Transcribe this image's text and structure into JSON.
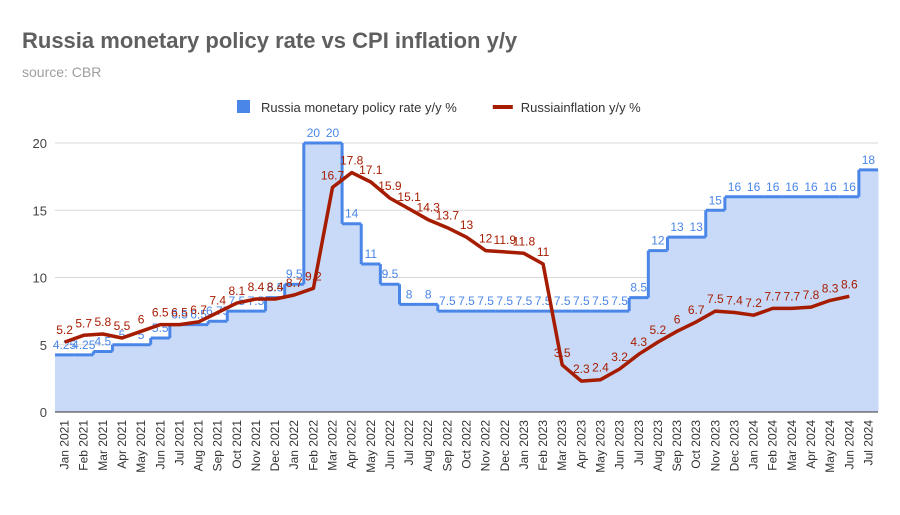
{
  "chart_data": {
    "type": "step-area-line",
    "title": "Russia monetary policy rate vs CPI inflation y/y",
    "subtitle": "source: CBR",
    "categories": [
      "Jan 2021",
      "Feb 2021",
      "Mar 2021",
      "Apr 2021",
      "May 2021",
      "Jun 2021",
      "Jul 2021",
      "Aug 2021",
      "Sep 2021",
      "Oct 2021",
      "Nov 2021",
      "Dec 2021",
      "Jan 2022",
      "Feb 2022",
      "Mar 2022",
      "Apr 2022",
      "May 2022",
      "Jun 2022",
      "Jul 2022",
      "Aug 2022",
      "Sep 2022",
      "Oct 2022",
      "Nov 2022",
      "Dec 2022",
      "Jan 2023",
      "Feb 2023",
      "Mar 2023",
      "Apr 2023",
      "May 2023",
      "Jun 2023",
      "Jul 2023",
      "Aug 2023",
      "Sep 2023",
      "Oct 2023",
      "Nov 2023",
      "Dec 2023",
      "Jan 2024",
      "Feb 2024",
      "Mar 2024",
      "Apr 2024",
      "May 2024",
      "Jun 2024",
      "Jul 2024"
    ],
    "series": [
      {
        "name": "Russia monetary policy rate y/y %",
        "color": "#4a86e8",
        "fill": "#c9daf8",
        "kind": "step-area",
        "values": [
          4.25,
          4.25,
          4.5,
          5,
          5,
          5.5,
          6.5,
          6.5,
          6.75,
          7.5,
          7.5,
          8.5,
          9.5,
          20,
          20,
          14,
          11,
          9.5,
          8,
          8,
          7.5,
          7.5,
          7.5,
          7.5,
          7.5,
          7.5,
          7.5,
          7.5,
          7.5,
          7.5,
          8.5,
          12,
          13,
          13,
          15,
          16,
          16,
          16,
          16,
          16,
          16,
          16,
          18
        ]
      },
      {
        "name": "Russiainflation y/y %",
        "color": "#a61c00",
        "kind": "line",
        "values": [
          5.2,
          5.7,
          5.8,
          5.5,
          6.0,
          6.5,
          6.5,
          6.7,
          7.4,
          8.1,
          8.4,
          8.4,
          8.7,
          9.2,
          16.7,
          17.8,
          17.1,
          15.9,
          15.1,
          14.3,
          13.7,
          13,
          12,
          11.9,
          11.8,
          11,
          3.5,
          2.3,
          2.4,
          3.2,
          4.3,
          5.2,
          6,
          6.7,
          7.5,
          7.4,
          7.2,
          7.7,
          7.7,
          7.8,
          8.3,
          8.6,
          null
        ]
      }
    ],
    "ylim": [
      0,
      20
    ],
    "yticks": [
      0,
      5,
      10,
      15,
      20
    ],
    "grid": true
  }
}
